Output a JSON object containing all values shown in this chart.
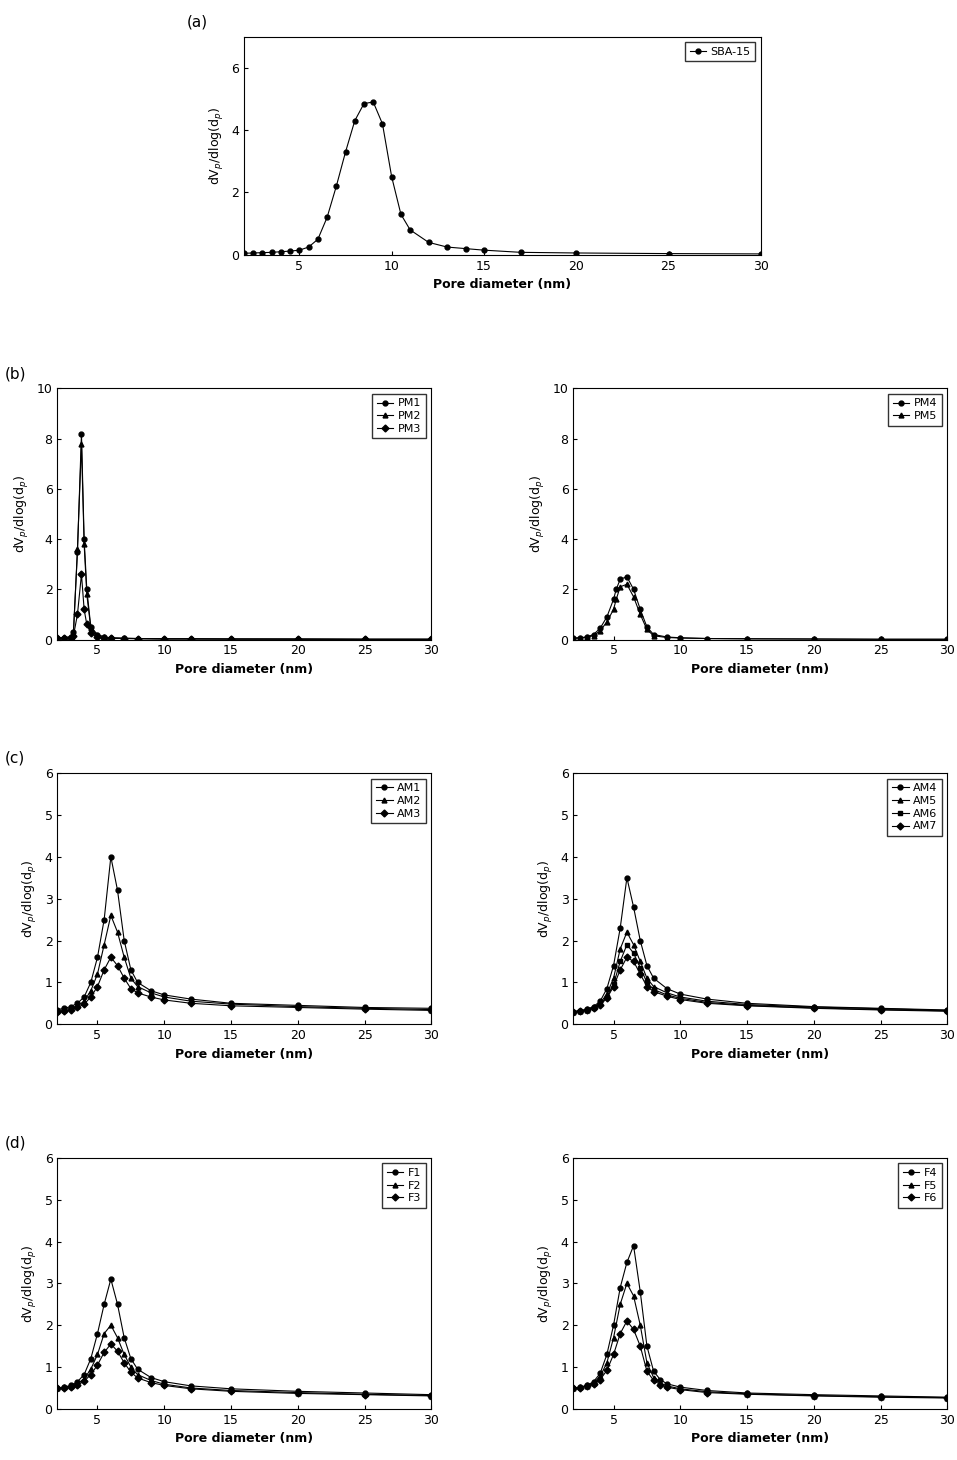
{
  "panel_a": {
    "series": [
      {
        "name": "SBA-15",
        "marker": "o",
        "x": [
          2,
          2.5,
          3,
          3.5,
          4,
          4.5,
          5,
          5.5,
          6,
          6.5,
          7,
          7.5,
          8,
          8.5,
          9,
          9.5,
          10,
          10.5,
          11,
          12,
          13,
          14,
          15,
          17,
          20,
          25,
          30
        ],
        "y": [
          0.05,
          0.06,
          0.07,
          0.08,
          0.1,
          0.12,
          0.15,
          0.25,
          0.5,
          1.2,
          2.2,
          3.3,
          4.3,
          4.85,
          4.9,
          4.2,
          2.5,
          1.3,
          0.8,
          0.4,
          0.25,
          0.2,
          0.15,
          0.08,
          0.06,
          0.04,
          0.03
        ]
      }
    ],
    "ylim": [
      0,
      7
    ],
    "yticks": [
      0,
      2,
      4,
      6
    ],
    "xlim": [
      2,
      30
    ],
    "xticks": [
      5,
      10,
      15,
      20,
      25,
      30
    ]
  },
  "panel_b_left": {
    "series": [
      {
        "name": "PM1",
        "marker": "o",
        "x": [
          2,
          2.5,
          3,
          3.2,
          3.5,
          3.8,
          4.0,
          4.2,
          4.5,
          5.0,
          5.5,
          6,
          7,
          8,
          10,
          12,
          15,
          20,
          25,
          30
        ],
        "y": [
          0.05,
          0.07,
          0.12,
          0.3,
          3.5,
          8.2,
          4.0,
          2.0,
          0.5,
          0.2,
          0.1,
          0.07,
          0.05,
          0.04,
          0.03,
          0.03,
          0.02,
          0.02,
          0.01,
          0.01
        ]
      },
      {
        "name": "PM2",
        "marker": "^",
        "x": [
          2,
          2.5,
          3,
          3.2,
          3.5,
          3.8,
          4.0,
          4.2,
          4.5,
          5.0,
          5.5,
          6,
          7,
          8,
          10,
          12,
          15,
          20,
          25,
          30
        ],
        "y": [
          0.05,
          0.07,
          0.1,
          0.25,
          3.6,
          7.8,
          3.8,
          1.8,
          0.45,
          0.18,
          0.1,
          0.06,
          0.05,
          0.04,
          0.03,
          0.03,
          0.02,
          0.02,
          0.01,
          0.01
        ]
      },
      {
        "name": "PM3",
        "marker": "D",
        "x": [
          2,
          2.5,
          3,
          3.2,
          3.5,
          3.8,
          4.0,
          4.2,
          4.5,
          5.0,
          5.5,
          6,
          7,
          8,
          10,
          12,
          15,
          20,
          25,
          30
        ],
        "y": [
          0.05,
          0.06,
          0.08,
          0.15,
          1.0,
          2.6,
          1.2,
          0.6,
          0.25,
          0.1,
          0.07,
          0.05,
          0.04,
          0.03,
          0.02,
          0.02,
          0.02,
          0.01,
          0.01,
          0.01
        ]
      }
    ],
    "ylim": [
      0,
      10
    ],
    "yticks": [
      0,
      2,
      4,
      6,
      8,
      10
    ],
    "xlim": [
      2,
      30
    ],
    "xticks": [
      5,
      10,
      15,
      20,
      25,
      30
    ]
  },
  "panel_b_right": {
    "series": [
      {
        "name": "PM4",
        "marker": "o",
        "x": [
          2,
          2.5,
          3,
          3.5,
          4,
          4.5,
          5,
          5.2,
          5.5,
          6.0,
          6.5,
          7.0,
          7.5,
          8,
          9,
          10,
          12,
          15,
          20,
          25,
          30
        ],
        "y": [
          0.05,
          0.07,
          0.1,
          0.2,
          0.45,
          0.9,
          1.6,
          2.0,
          2.4,
          2.5,
          2.0,
          1.2,
          0.5,
          0.2,
          0.1,
          0.07,
          0.04,
          0.03,
          0.02,
          0.01,
          0.01
        ]
      },
      {
        "name": "PM5",
        "marker": "^",
        "x": [
          2,
          2.5,
          3,
          3.5,
          4,
          4.5,
          5,
          5.2,
          5.5,
          6.0,
          6.5,
          7.0,
          7.5,
          8,
          9,
          10,
          12,
          15,
          20,
          25,
          30
        ],
        "y": [
          0.05,
          0.07,
          0.09,
          0.16,
          0.35,
          0.7,
          1.2,
          1.6,
          2.1,
          2.2,
          1.7,
          1.0,
          0.4,
          0.15,
          0.08,
          0.06,
          0.04,
          0.03,
          0.02,
          0.01,
          0.01
        ]
      }
    ],
    "ylim": [
      0,
      10
    ],
    "yticks": [
      0,
      2,
      4,
      6,
      8,
      10
    ],
    "xlim": [
      2,
      30
    ],
    "xticks": [
      5,
      10,
      15,
      20,
      25,
      30
    ]
  },
  "panel_c_left": {
    "series": [
      {
        "name": "AM1",
        "marker": "o",
        "x": [
          2,
          2.5,
          3,
          3.5,
          4,
          4.5,
          5,
          5.5,
          6,
          6.5,
          7,
          7.5,
          8,
          9,
          10,
          12,
          15,
          20,
          25,
          30
        ],
        "y": [
          0.35,
          0.38,
          0.42,
          0.5,
          0.65,
          1.0,
          1.6,
          2.5,
          4.0,
          3.2,
          2.0,
          1.3,
          1.0,
          0.8,
          0.7,
          0.6,
          0.5,
          0.45,
          0.4,
          0.38
        ]
      },
      {
        "name": "AM2",
        "marker": "^",
        "x": [
          2,
          2.5,
          3,
          3.5,
          4,
          4.5,
          5,
          5.5,
          6,
          6.5,
          7,
          7.5,
          8,
          9,
          10,
          12,
          15,
          20,
          25,
          30
        ],
        "y": [
          0.32,
          0.35,
          0.38,
          0.44,
          0.55,
          0.8,
          1.2,
          1.9,
          2.6,
          2.2,
          1.6,
          1.1,
          0.9,
          0.75,
          0.65,
          0.55,
          0.48,
          0.42,
          0.38,
          0.35
        ]
      },
      {
        "name": "AM3",
        "marker": "D",
        "x": [
          2,
          2.5,
          3,
          3.5,
          4,
          4.5,
          5,
          5.5,
          6,
          6.5,
          7,
          7.5,
          8,
          9,
          10,
          12,
          15,
          20,
          25,
          30
        ],
        "y": [
          0.3,
          0.32,
          0.35,
          0.4,
          0.48,
          0.65,
          0.9,
          1.3,
          1.6,
          1.4,
          1.1,
          0.85,
          0.75,
          0.65,
          0.58,
          0.5,
          0.44,
          0.4,
          0.36,
          0.33
        ]
      }
    ],
    "ylim": [
      0,
      6
    ],
    "yticks": [
      0,
      1,
      2,
      3,
      4,
      5,
      6
    ],
    "xlim": [
      2,
      30
    ],
    "xticks": [
      5,
      10,
      15,
      20,
      25,
      30
    ]
  },
  "panel_c_right": {
    "series": [
      {
        "name": "AM4",
        "marker": "o",
        "x": [
          2,
          2.5,
          3,
          3.5,
          4,
          4.5,
          5,
          5.5,
          6,
          6.5,
          7,
          7.5,
          8,
          9,
          10,
          12,
          15,
          20,
          25,
          30
        ],
        "y": [
          0.3,
          0.32,
          0.36,
          0.42,
          0.55,
          0.85,
          1.4,
          2.3,
          3.5,
          2.8,
          2.0,
          1.4,
          1.1,
          0.85,
          0.72,
          0.6,
          0.5,
          0.42,
          0.38,
          0.34
        ]
      },
      {
        "name": "AM5",
        "marker": "^",
        "x": [
          2,
          2.5,
          3,
          3.5,
          4,
          4.5,
          5,
          5.5,
          6,
          6.5,
          7,
          7.5,
          8,
          9,
          10,
          12,
          15,
          20,
          25,
          30
        ],
        "y": [
          0.3,
          0.32,
          0.35,
          0.4,
          0.5,
          0.72,
          1.1,
          1.8,
          2.2,
          1.9,
          1.5,
          1.1,
          0.9,
          0.75,
          0.65,
          0.55,
          0.47,
          0.41,
          0.37,
          0.33
        ]
      },
      {
        "name": "AM6",
        "marker": "s",
        "x": [
          2,
          2.5,
          3,
          3.5,
          4,
          4.5,
          5,
          5.5,
          6,
          6.5,
          7,
          7.5,
          8,
          9,
          10,
          12,
          15,
          20,
          25,
          30
        ],
        "y": [
          0.3,
          0.31,
          0.34,
          0.39,
          0.48,
          0.65,
          0.95,
          1.5,
          1.9,
          1.7,
          1.35,
          1.0,
          0.83,
          0.7,
          0.62,
          0.52,
          0.45,
          0.39,
          0.35,
          0.32
        ]
      },
      {
        "name": "AM7",
        "marker": "D",
        "x": [
          2,
          2.5,
          3,
          3.5,
          4,
          4.5,
          5,
          5.5,
          6,
          6.5,
          7,
          7.5,
          8,
          9,
          10,
          12,
          15,
          20,
          25,
          30
        ],
        "y": [
          0.3,
          0.31,
          0.33,
          0.38,
          0.46,
          0.62,
          0.9,
          1.3,
          1.6,
          1.5,
          1.2,
          0.9,
          0.78,
          0.67,
          0.59,
          0.5,
          0.44,
          0.38,
          0.34,
          0.31
        ]
      }
    ],
    "ylim": [
      0,
      6
    ],
    "yticks": [
      0,
      1,
      2,
      3,
      4,
      5,
      6
    ],
    "xlim": [
      2,
      30
    ],
    "xticks": [
      5,
      10,
      15,
      20,
      25,
      30
    ]
  },
  "panel_d_left": {
    "series": [
      {
        "name": "F1",
        "marker": "o",
        "x": [
          2,
          2.5,
          3,
          3.5,
          4,
          4.5,
          5,
          5.5,
          6,
          6.5,
          7,
          7.5,
          8,
          9,
          10,
          12,
          15,
          20,
          25,
          30
        ],
        "y": [
          0.5,
          0.52,
          0.56,
          0.65,
          0.82,
          1.2,
          1.8,
          2.5,
          3.1,
          2.5,
          1.7,
          1.2,
          0.95,
          0.75,
          0.65,
          0.55,
          0.48,
          0.42,
          0.38,
          0.34
        ]
      },
      {
        "name": "F2",
        "marker": "^",
        "x": [
          2,
          2.5,
          3,
          3.5,
          4,
          4.5,
          5,
          5.5,
          6,
          6.5,
          7,
          7.5,
          8,
          9,
          10,
          12,
          15,
          20,
          25,
          30
        ],
        "y": [
          0.5,
          0.52,
          0.55,
          0.6,
          0.72,
          0.95,
          1.3,
          1.8,
          2.0,
          1.7,
          1.3,
          1.0,
          0.82,
          0.68,
          0.59,
          0.5,
          0.44,
          0.39,
          0.35,
          0.32
        ]
      },
      {
        "name": "F3",
        "marker": "D",
        "x": [
          2,
          2.5,
          3,
          3.5,
          4,
          4.5,
          5,
          5.5,
          6,
          6.5,
          7,
          7.5,
          8,
          9,
          10,
          12,
          15,
          20,
          25,
          30
        ],
        "y": [
          0.5,
          0.51,
          0.53,
          0.57,
          0.66,
          0.82,
          1.05,
          1.35,
          1.55,
          1.38,
          1.1,
          0.88,
          0.74,
          0.63,
          0.56,
          0.48,
          0.42,
          0.37,
          0.34,
          0.31
        ]
      }
    ],
    "ylim": [
      0,
      6
    ],
    "yticks": [
      0,
      1,
      2,
      3,
      4,
      5,
      6
    ],
    "xlim": [
      2,
      30
    ],
    "xticks": [
      5,
      10,
      15,
      20,
      25,
      30
    ]
  },
  "panel_d_right": {
    "series": [
      {
        "name": "F4",
        "marker": "o",
        "x": [
          2,
          2.5,
          3,
          3.5,
          4,
          4.5,
          5,
          5.5,
          6,
          6.5,
          7,
          7.5,
          8,
          8.5,
          9,
          10,
          12,
          15,
          20,
          25,
          30
        ],
        "y": [
          0.5,
          0.52,
          0.56,
          0.65,
          0.85,
          1.3,
          2.0,
          2.9,
          3.5,
          3.9,
          2.8,
          1.5,
          0.9,
          0.7,
          0.6,
          0.52,
          0.44,
          0.38,
          0.34,
          0.31,
          0.28
        ]
      },
      {
        "name": "F5",
        "marker": "^",
        "x": [
          2,
          2.5,
          3,
          3.5,
          4,
          4.5,
          5,
          5.5,
          6,
          6.5,
          7,
          7.5,
          8,
          8.5,
          9,
          10,
          12,
          15,
          20,
          25,
          30
        ],
        "y": [
          0.5,
          0.52,
          0.55,
          0.62,
          0.78,
          1.1,
          1.7,
          2.5,
          3.0,
          2.7,
          2.0,
          1.1,
          0.75,
          0.62,
          0.55,
          0.48,
          0.41,
          0.36,
          0.32,
          0.29,
          0.27
        ]
      },
      {
        "name": "F6",
        "marker": "D",
        "x": [
          2,
          2.5,
          3,
          3.5,
          4,
          4.5,
          5,
          5.5,
          6,
          6.5,
          7,
          7.5,
          8,
          8.5,
          9,
          10,
          12,
          15,
          20,
          25,
          30
        ],
        "y": [
          0.5,
          0.51,
          0.54,
          0.59,
          0.7,
          0.92,
          1.3,
          1.8,
          2.1,
          1.9,
          1.5,
          0.9,
          0.68,
          0.58,
          0.52,
          0.46,
          0.39,
          0.35,
          0.31,
          0.28,
          0.26
        ]
      }
    ],
    "ylim": [
      0,
      6
    ],
    "yticks": [
      0,
      1,
      2,
      3,
      4,
      5,
      6
    ],
    "xlim": [
      2,
      30
    ],
    "xticks": [
      5,
      10,
      15,
      20,
      25,
      30
    ]
  },
  "ylabel": "dV$_p$/dlog(d$_p$)",
  "xlabel": "Pore diameter (nm)",
  "line_color": "black",
  "marker_size": 3.5,
  "font_size": 9
}
